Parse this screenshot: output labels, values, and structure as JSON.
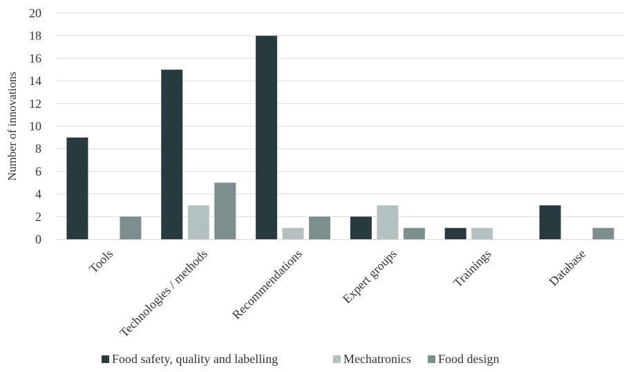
{
  "chart_data": {
    "type": "bar",
    "ylabel": "Number of innovations",
    "xlabel": "",
    "ylim": [
      0,
      20
    ],
    "yticks": [
      0,
      2,
      4,
      6,
      8,
      10,
      12,
      14,
      16,
      18,
      20
    ],
    "grid": true,
    "legend_position": "bottom",
    "categories": [
      "Tools",
      "Technologies / methods",
      "Recommendations",
      "Expert groups",
      "Trainings",
      "Database"
    ],
    "series": [
      {
        "name": "Food safety, quality and labelling",
        "color": "#263a40",
        "values": [
          9,
          15,
          18,
          2,
          1,
          3
        ]
      },
      {
        "name": "Mechatronics",
        "color": "#b3c1c1",
        "values": [
          0,
          3,
          1,
          3,
          1,
          0
        ]
      },
      {
        "name": "Food design",
        "color": "#7d8e8f",
        "values": [
          2,
          5,
          2,
          1,
          0,
          1
        ]
      }
    ]
  }
}
